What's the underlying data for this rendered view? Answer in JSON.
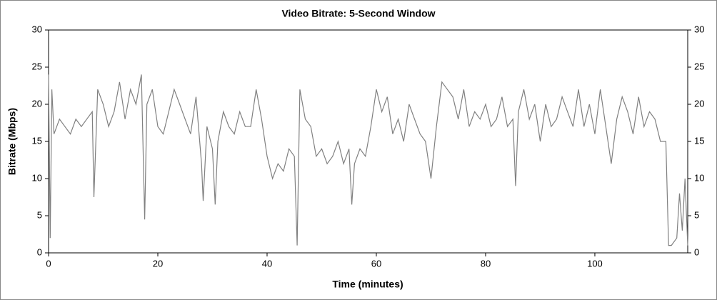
{
  "chart_data": {
    "type": "line",
    "title": "Video Bitrate: 5-Second Window",
    "x_label": "Time (minutes)",
    "y_label": "Bitrate (Mbps)",
    "x": [
      0,
      0.3,
      0.6,
      1,
      2,
      3,
      4,
      5,
      6,
      7,
      8,
      8.3,
      9,
      10,
      11,
      12,
      13,
      14,
      15,
      16,
      17,
      17.6,
      18,
      19,
      20,
      21,
      22,
      23,
      24,
      25,
      26,
      27,
      28,
      28.3,
      29,
      30,
      30.5,
      31,
      32,
      33,
      34,
      35,
      36,
      37,
      38,
      39,
      40,
      41,
      42,
      43,
      44,
      45,
      45.5,
      46,
      47,
      48,
      49,
      50,
      51,
      52,
      53,
      54,
      55,
      55.5,
      56,
      57,
      58,
      59,
      60,
      61,
      62,
      63,
      64,
      65,
      66,
      67,
      68,
      69,
      70,
      71,
      72,
      73,
      74,
      75,
      76,
      77,
      78,
      79,
      80,
      81,
      82,
      83,
      84,
      85,
      85.5,
      86,
      87,
      88,
      89,
      90,
      91,
      92,
      93,
      94,
      95,
      96,
      97,
      98,
      99,
      100,
      101,
      102,
      103,
      104,
      105,
      106,
      107,
      108,
      109,
      110,
      111,
      112,
      113,
      113.5,
      114,
      115,
      115.5,
      116,
      116.5,
      117
    ],
    "values": [
      24,
      2,
      22,
      16,
      18,
      17,
      16,
      18,
      17,
      18,
      19,
      7.5,
      22,
      20,
      17,
      19,
      23,
      18,
      22,
      20,
      24,
      4.5,
      20,
      22,
      17,
      16,
      19,
      22,
      20,
      18,
      16,
      21,
      12,
      7,
      17,
      14,
      6.5,
      15,
      19,
      17,
      16,
      19,
      17,
      17,
      22,
      18,
      13,
      10,
      12,
      11,
      14,
      13,
      1,
      22,
      18,
      17,
      13,
      14,
      12,
      13,
      15,
      12,
      14,
      6.5,
      12,
      14,
      13,
      17,
      22,
      19,
      21,
      16,
      18,
      15,
      20,
      18,
      16,
      15,
      10,
      17,
      23,
      22,
      21,
      18,
      22,
      17,
      19,
      18,
      20,
      17,
      18,
      21,
      17,
      18,
      9,
      19,
      22,
      18,
      20,
      15,
      20,
      17,
      18,
      21,
      19,
      17,
      22,
      17,
      20,
      16,
      22,
      17,
      12,
      18,
      21,
      19,
      16,
      21,
      17,
      19,
      18,
      15,
      15,
      1,
      1,
      2,
      8,
      3,
      10,
      1
    ],
    "color": "#808080",
    "xlim": [
      0,
      117
    ],
    "xticks": [
      0,
      20,
      40,
      60,
      80,
      100
    ],
    "ylim": [
      0,
      30
    ],
    "yticks": [
      0,
      5,
      10,
      15,
      20,
      25,
      30
    ],
    "y2lim": [
      0,
      30
    ],
    "y2ticks": [
      0,
      5,
      10,
      15,
      20,
      25,
      30
    ]
  }
}
